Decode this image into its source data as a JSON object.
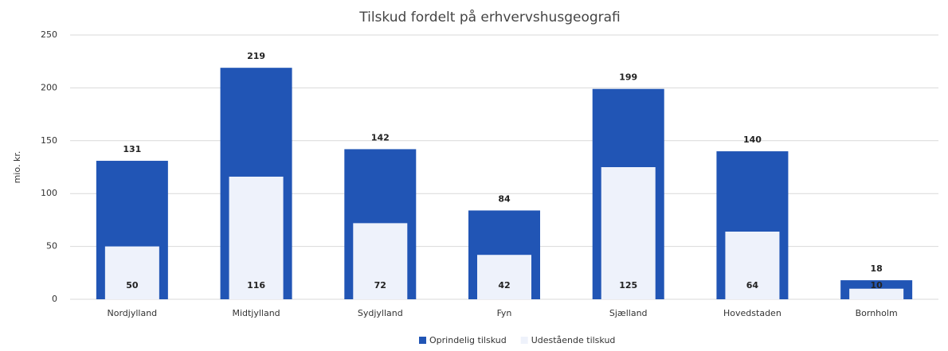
{
  "chart_data": {
    "type": "bar",
    "title": "Tilskud fordelt på erhvervshusgeografi",
    "y_label": "mio. kr.",
    "categories": [
      "Nordjylland",
      "Midtjylland",
      "Sydjylland",
      "Fyn",
      "Sjælland",
      "Hovedstaden",
      "Bornholm"
    ],
    "series": [
      {
        "name": "Oprindelig tilskud",
        "color": "#2155b5",
        "values": [
          131,
          219,
          142,
          84,
          199,
          140,
          18
        ]
      },
      {
        "name": "Udestående tilskud",
        "color": "#eef2fb",
        "values": [
          50,
          116,
          72,
          42,
          125,
          64,
          10
        ]
      }
    ],
    "ylim": [
      0,
      250
    ],
    "yticks": [
      0,
      50,
      100,
      150,
      200,
      250
    ],
    "grid": true,
    "legend": "bottom"
  }
}
